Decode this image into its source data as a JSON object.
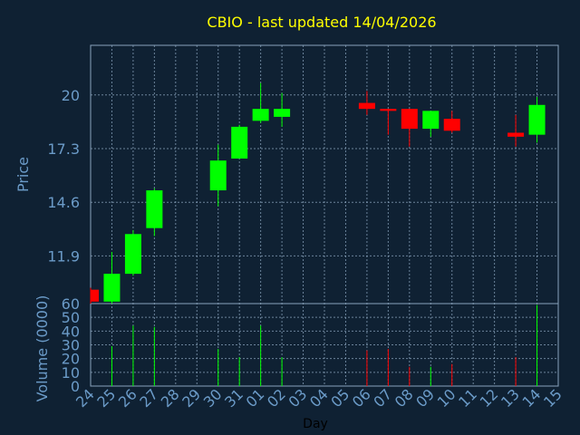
{
  "chart_data": {
    "type": "candlestick",
    "title": "CBIO - last updated 14/04/2026",
    "price_panel": {
      "ylabel": "Price",
      "yticks": [
        "11.9",
        "14.6",
        "17.3",
        "20"
      ],
      "ylim": [
        9.5,
        22.5
      ],
      "grid": true
    },
    "volume_panel": {
      "ylabel": "Volume (0000)",
      "yticks": [
        "0",
        "10",
        "20",
        "30",
        "40",
        "50",
        "60"
      ],
      "ylim": [
        0,
        60
      ],
      "grid": true
    },
    "xlabel": "Day",
    "x_ticks": [
      "24",
      "25",
      "26",
      "27",
      "28",
      "29",
      "30",
      "31",
      "01",
      "02",
      "03",
      "04",
      "05",
      "06",
      "07",
      "08",
      "09",
      "10",
      "11",
      "12",
      "13",
      "14",
      "15"
    ],
    "candles": [
      {
        "day": "24",
        "open": 10.2,
        "close": 9.6,
        "high": 10.3,
        "low": 9.5,
        "volume": 0
      },
      {
        "day": "25",
        "open": 9.6,
        "close": 11.0,
        "high": 12.1,
        "low": 9.5,
        "volume": 29
      },
      {
        "day": "26",
        "open": 11.0,
        "close": 13.0,
        "high": 13.2,
        "low": 10.9,
        "volume": 44
      },
      {
        "day": "27",
        "open": 13.3,
        "close": 15.2,
        "high": 15.3,
        "low": 12.9,
        "volume": 43
      },
      {
        "day": "30",
        "open": 15.2,
        "close": 16.7,
        "high": 17.5,
        "low": 14.4,
        "volume": 27
      },
      {
        "day": "31",
        "open": 16.8,
        "close": 18.4,
        "high": 18.5,
        "low": 16.8,
        "volume": 21
      },
      {
        "day": "01",
        "open": 18.7,
        "close": 19.3,
        "high": 20.6,
        "low": 18.6,
        "volume": 44
      },
      {
        "day": "02",
        "open": 18.9,
        "close": 19.3,
        "high": 20.1,
        "low": 18.4,
        "volume": 21
      },
      {
        "day": "06",
        "open": 19.6,
        "close": 19.3,
        "high": 20.2,
        "low": 19.0,
        "volume": 26
      },
      {
        "day": "07",
        "open": 19.3,
        "close": 19.2,
        "high": 19.3,
        "low": 18.0,
        "volume": 27
      },
      {
        "day": "08",
        "open": 19.3,
        "close": 18.3,
        "high": 19.3,
        "low": 17.4,
        "volume": 14
      },
      {
        "day": "09",
        "open": 18.3,
        "close": 19.2,
        "high": 19.2,
        "low": 17.9,
        "volume": 14
      },
      {
        "day": "10",
        "open": 18.8,
        "close": 18.2,
        "high": 19.2,
        "low": 18.1,
        "volume": 16
      },
      {
        "day": "13",
        "open": 18.1,
        "close": 17.9,
        "high": 19.0,
        "low": 17.4,
        "volume": 21
      },
      {
        "day": "14",
        "open": 18.0,
        "close": 19.5,
        "high": 19.9,
        "low": 17.6,
        "volume": 59
      }
    ],
    "colors": {
      "background": "#0f2133",
      "plot_border": "#8aa4bd",
      "grid": "#8aa4bd",
      "title": "#ffff00",
      "axis_text": "#6b9bc8",
      "up": "#00ff00",
      "down": "#ff0000"
    }
  }
}
